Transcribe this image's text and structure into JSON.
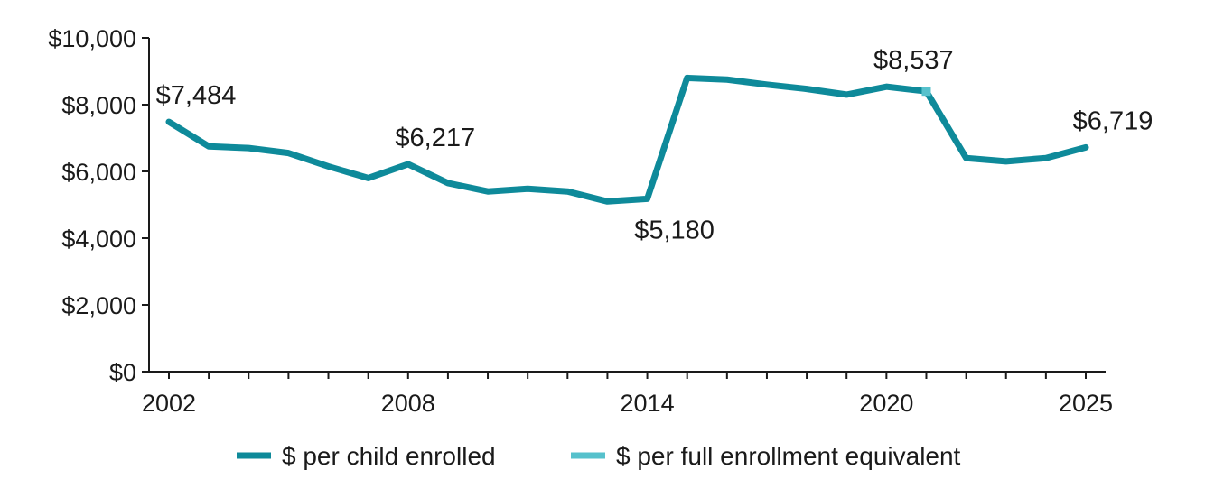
{
  "chart_data": {
    "type": "line",
    "title": "",
    "xlabel": "",
    "ylabel": "",
    "xlim": [
      2002,
      2025
    ],
    "ylim": [
      0,
      10000
    ],
    "y_ticks": [
      0,
      2000,
      4000,
      6000,
      8000,
      10000
    ],
    "y_tick_labels": [
      "$0",
      "$2,000",
      "$4,000",
      "$6,000",
      "$8,000",
      "$10,000"
    ],
    "x_ticks": [
      2002,
      2008,
      2014,
      2020,
      2025
    ],
    "x_tick_labels": [
      "2002",
      "2008",
      "2014",
      "2020",
      "2025"
    ],
    "grid": false,
    "legend_position": "bottom",
    "series": [
      {
        "name": "$ per child enrolled",
        "color": "#0e8a9a",
        "x": [
          2002,
          2003,
          2004,
          2005,
          2006,
          2007,
          2008,
          2009,
          2010,
          2011,
          2012,
          2013,
          2014,
          2015,
          2016,
          2017,
          2018,
          2019,
          2020,
          2021
        ],
        "values": [
          7484,
          6750,
          6700,
          6550,
          6150,
          5800,
          6217,
          5650,
          5400,
          5480,
          5400,
          5100,
          5180,
          8800,
          8750,
          8600,
          8470,
          8300,
          8537,
          8400
        ]
      },
      {
        "name": "$ per full enrollment equivalent",
        "color": "#56c1cc",
        "x": [
          2021,
          2022,
          2023,
          2024,
          2025
        ],
        "values": [
          8400,
          6400,
          6300,
          6400,
          6719
        ],
        "drawn_color": "#0e8a9a",
        "marker_year": 2021
      }
    ],
    "annotations": [
      {
        "x": 2002,
        "y": 7484,
        "text": "$7,484",
        "anchor": "above"
      },
      {
        "x": 2008,
        "y": 6217,
        "text": "$6,217",
        "anchor": "above"
      },
      {
        "x": 2014,
        "y": 5180,
        "text": "$5,180",
        "anchor": "below"
      },
      {
        "x": 2020,
        "y": 8537,
        "text": "$8,537",
        "anchor": "above"
      },
      {
        "x": 2025,
        "y": 6719,
        "text": "$6,719",
        "anchor": "above"
      }
    ]
  }
}
